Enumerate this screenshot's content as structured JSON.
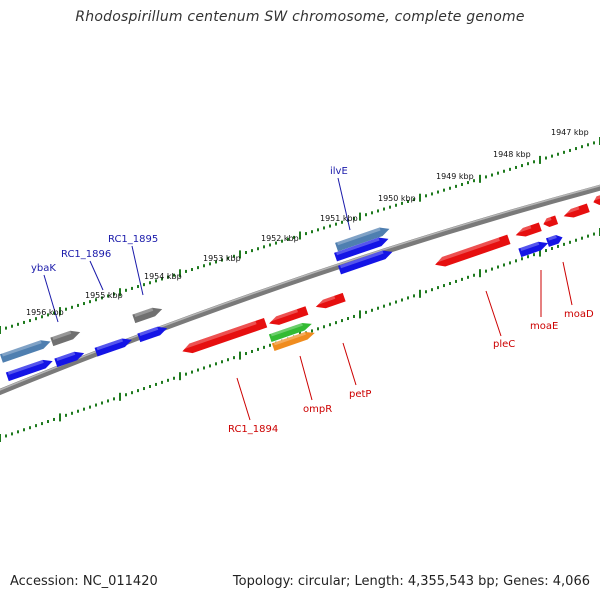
{
  "title": "Rhodospirillum centenum SW chromosome, complete genome",
  "footer": {
    "accession": "Accession: NC_011420",
    "summary": "Topology: circular; Length: 4,355,543 bp; Genes: 4,066"
  },
  "colors": {
    "forward_label": "#1a1aaa",
    "reverse_label": "#cc0000",
    "forward_gene": "#1414e6",
    "forward_rna": "#4f7fb0",
    "reverse_gene": "#e60f0f",
    "pseudo_gene": "#707070",
    "green_gene": "#33bb33",
    "orange_gene": "#f08c1e",
    "backbone": "#7a7a7a",
    "tick": "#1e7a1e"
  },
  "scale_labels": [
    "1947 kbp",
    "1948 kbp",
    "1949 kbp",
    "1950 kbp",
    "1951 kbp",
    "1952 kbp",
    "1953 kbp",
    "1954 kbp",
    "1955 kbp",
    "1956 kbp"
  ],
  "forward_gene_labels": [
    "ilvE",
    "RC1_1895",
    "RC1_1896",
    "ybaK"
  ],
  "reverse_gene_labels": [
    "moaD",
    "moaE",
    "pleC",
    "petP",
    "ompR",
    "RC1_1894"
  ]
}
